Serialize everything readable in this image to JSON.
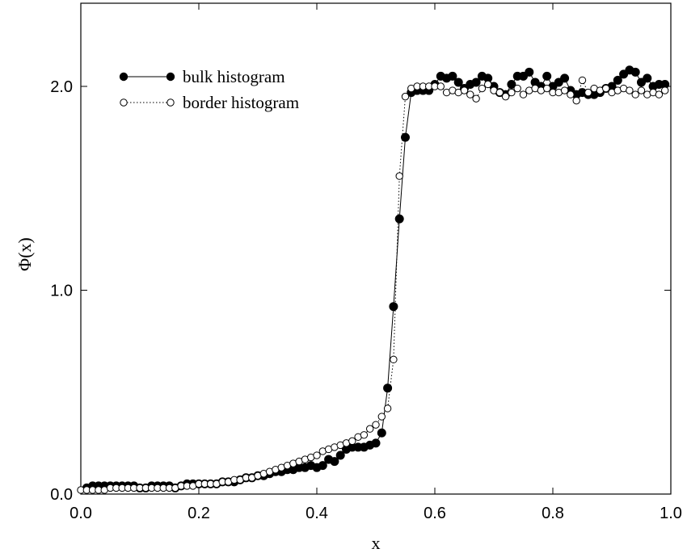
{
  "chart_data": {
    "type": "scatter",
    "title": "",
    "xlabel": "x",
    "ylabel": "Φ(x)",
    "xlim": [
      0.0,
      1.0
    ],
    "ylim": [
      0.0,
      2.4
    ],
    "x_ticks": [
      "0.0",
      "0.2",
      "0.4",
      "0.6",
      "0.8",
      "1.0"
    ],
    "y_ticks": [
      "0.0",
      "1.0",
      "2.0"
    ],
    "grid": false,
    "legend_position": "top-left",
    "series": [
      {
        "name": "bulk histogram",
        "marker": "filled-circle",
        "line": "solid",
        "color": "#000000",
        "points": [
          [
            0.01,
            0.03
          ],
          [
            0.02,
            0.04
          ],
          [
            0.03,
            0.04
          ],
          [
            0.04,
            0.04
          ],
          [
            0.05,
            0.04
          ],
          [
            0.06,
            0.04
          ],
          [
            0.07,
            0.04
          ],
          [
            0.08,
            0.04
          ],
          [
            0.09,
            0.04
          ],
          [
            0.1,
            0.03
          ],
          [
            0.11,
            0.03
          ],
          [
            0.12,
            0.04
          ],
          [
            0.13,
            0.04
          ],
          [
            0.14,
            0.04
          ],
          [
            0.15,
            0.04
          ],
          [
            0.16,
            0.03
          ],
          [
            0.17,
            0.04
          ],
          [
            0.18,
            0.05
          ],
          [
            0.19,
            0.05
          ],
          [
            0.2,
            0.05
          ],
          [
            0.21,
            0.05
          ],
          [
            0.22,
            0.05
          ],
          [
            0.23,
            0.05
          ],
          [
            0.24,
            0.06
          ],
          [
            0.25,
            0.06
          ],
          [
            0.26,
            0.06
          ],
          [
            0.27,
            0.07
          ],
          [
            0.28,
            0.08
          ],
          [
            0.29,
            0.08
          ],
          [
            0.3,
            0.09
          ],
          [
            0.31,
            0.09
          ],
          [
            0.32,
            0.1
          ],
          [
            0.33,
            0.11
          ],
          [
            0.34,
            0.11
          ],
          [
            0.35,
            0.12
          ],
          [
            0.36,
            0.12
          ],
          [
            0.37,
            0.13
          ],
          [
            0.38,
            0.13
          ],
          [
            0.39,
            0.14
          ],
          [
            0.4,
            0.13
          ],
          [
            0.41,
            0.14
          ],
          [
            0.42,
            0.17
          ],
          [
            0.43,
            0.16
          ],
          [
            0.44,
            0.19
          ],
          [
            0.45,
            0.22
          ],
          [
            0.46,
            0.23
          ],
          [
            0.47,
            0.23
          ],
          [
            0.48,
            0.23
          ],
          [
            0.49,
            0.24
          ],
          [
            0.5,
            0.25
          ],
          [
            0.51,
            0.3
          ],
          [
            0.52,
            0.52
          ],
          [
            0.53,
            0.92
          ],
          [
            0.54,
            1.35
          ],
          [
            0.55,
            1.75
          ],
          [
            0.56,
            1.97
          ],
          [
            0.57,
            1.98
          ],
          [
            0.58,
            1.98
          ],
          [
            0.59,
            1.98
          ],
          [
            0.6,
            2.01
          ],
          [
            0.61,
            2.05
          ],
          [
            0.62,
            2.04
          ],
          [
            0.63,
            2.05
          ],
          [
            0.64,
            2.02
          ],
          [
            0.65,
            1.99
          ],
          [
            0.66,
            2.01
          ],
          [
            0.67,
            2.02
          ],
          [
            0.68,
            2.05
          ],
          [
            0.69,
            2.04
          ],
          [
            0.7,
            2.0
          ],
          [
            0.71,
            1.97
          ],
          [
            0.72,
            1.96
          ],
          [
            0.73,
            2.01
          ],
          [
            0.74,
            2.05
          ],
          [
            0.75,
            2.05
          ],
          [
            0.76,
            2.07
          ],
          [
            0.77,
            2.02
          ],
          [
            0.78,
            2.0
          ],
          [
            0.79,
            2.05
          ],
          [
            0.8,
            2.0
          ],
          [
            0.81,
            2.02
          ],
          [
            0.82,
            2.04
          ],
          [
            0.83,
            1.98
          ],
          [
            0.84,
            1.96
          ],
          [
            0.85,
            1.97
          ],
          [
            0.86,
            1.96
          ],
          [
            0.87,
            1.96
          ],
          [
            0.88,
            1.97
          ],
          [
            0.89,
            1.99
          ],
          [
            0.9,
            2.0
          ],
          [
            0.91,
            2.03
          ],
          [
            0.92,
            2.06
          ],
          [
            0.93,
            2.08
          ],
          [
            0.94,
            2.07
          ],
          [
            0.95,
            2.02
          ],
          [
            0.96,
            2.04
          ],
          [
            0.97,
            2.0
          ],
          [
            0.98,
            2.01
          ],
          [
            0.99,
            2.01
          ]
        ]
      },
      {
        "name": "border histogram",
        "marker": "open-circle",
        "line": "dotted",
        "color": "#000000",
        "points": [
          [
            0.0,
            0.02
          ],
          [
            0.01,
            0.02
          ],
          [
            0.02,
            0.02
          ],
          [
            0.03,
            0.02
          ],
          [
            0.04,
            0.02
          ],
          [
            0.05,
            0.03
          ],
          [
            0.06,
            0.03
          ],
          [
            0.07,
            0.03
          ],
          [
            0.08,
            0.03
          ],
          [
            0.09,
            0.03
          ],
          [
            0.1,
            0.03
          ],
          [
            0.11,
            0.03
          ],
          [
            0.12,
            0.03
          ],
          [
            0.13,
            0.03
          ],
          [
            0.14,
            0.03
          ],
          [
            0.15,
            0.03
          ],
          [
            0.16,
            0.03
          ],
          [
            0.17,
            0.04
          ],
          [
            0.18,
            0.04
          ],
          [
            0.19,
            0.04
          ],
          [
            0.2,
            0.05
          ],
          [
            0.21,
            0.05
          ],
          [
            0.22,
            0.05
          ],
          [
            0.23,
            0.05
          ],
          [
            0.24,
            0.06
          ],
          [
            0.25,
            0.06
          ],
          [
            0.26,
            0.07
          ],
          [
            0.27,
            0.07
          ],
          [
            0.28,
            0.08
          ],
          [
            0.29,
            0.08
          ],
          [
            0.3,
            0.09
          ],
          [
            0.31,
            0.1
          ],
          [
            0.32,
            0.11
          ],
          [
            0.33,
            0.12
          ],
          [
            0.34,
            0.13
          ],
          [
            0.35,
            0.14
          ],
          [
            0.36,
            0.15
          ],
          [
            0.37,
            0.16
          ],
          [
            0.38,
            0.17
          ],
          [
            0.39,
            0.18
          ],
          [
            0.4,
            0.19
          ],
          [
            0.41,
            0.21
          ],
          [
            0.42,
            0.22
          ],
          [
            0.43,
            0.23
          ],
          [
            0.44,
            0.24
          ],
          [
            0.45,
            0.25
          ],
          [
            0.46,
            0.26
          ],
          [
            0.47,
            0.28
          ],
          [
            0.48,
            0.29
          ],
          [
            0.49,
            0.32
          ],
          [
            0.5,
            0.34
          ],
          [
            0.51,
            0.38
          ],
          [
            0.52,
            0.42
          ],
          [
            0.53,
            0.66
          ],
          [
            0.54,
            1.56
          ],
          [
            0.55,
            1.95
          ],
          [
            0.56,
            1.99
          ],
          [
            0.57,
            2.0
          ],
          [
            0.58,
            2.0
          ],
          [
            0.59,
            2.0
          ],
          [
            0.6,
            2.0
          ],
          [
            0.61,
            2.0
          ],
          [
            0.62,
            1.97
          ],
          [
            0.63,
            1.98
          ],
          [
            0.64,
            1.97
          ],
          [
            0.65,
            1.98
          ],
          [
            0.66,
            1.96
          ],
          [
            0.67,
            1.94
          ],
          [
            0.68,
            1.99
          ],
          [
            0.69,
            2.01
          ],
          [
            0.7,
            1.98
          ],
          [
            0.71,
            1.97
          ],
          [
            0.72,
            1.95
          ],
          [
            0.73,
            1.97
          ],
          [
            0.74,
            1.99
          ],
          [
            0.75,
            1.96
          ],
          [
            0.76,
            1.98
          ],
          [
            0.77,
            1.99
          ],
          [
            0.78,
            1.98
          ],
          [
            0.79,
            1.99
          ],
          [
            0.8,
            1.97
          ],
          [
            0.81,
            1.97
          ],
          [
            0.82,
            1.98
          ],
          [
            0.83,
            1.96
          ],
          [
            0.84,
            1.93
          ],
          [
            0.85,
            2.03
          ],
          [
            0.86,
            1.97
          ],
          [
            0.87,
            1.99
          ],
          [
            0.88,
            1.98
          ],
          [
            0.89,
            1.99
          ],
          [
            0.9,
            1.97
          ],
          [
            0.91,
            1.98
          ],
          [
            0.92,
            1.99
          ],
          [
            0.93,
            1.98
          ],
          [
            0.94,
            1.96
          ],
          [
            0.95,
            1.98
          ],
          [
            0.96,
            1.96
          ],
          [
            0.97,
            1.97
          ],
          [
            0.98,
            1.96
          ],
          [
            0.99,
            1.98
          ]
        ]
      }
    ]
  }
}
